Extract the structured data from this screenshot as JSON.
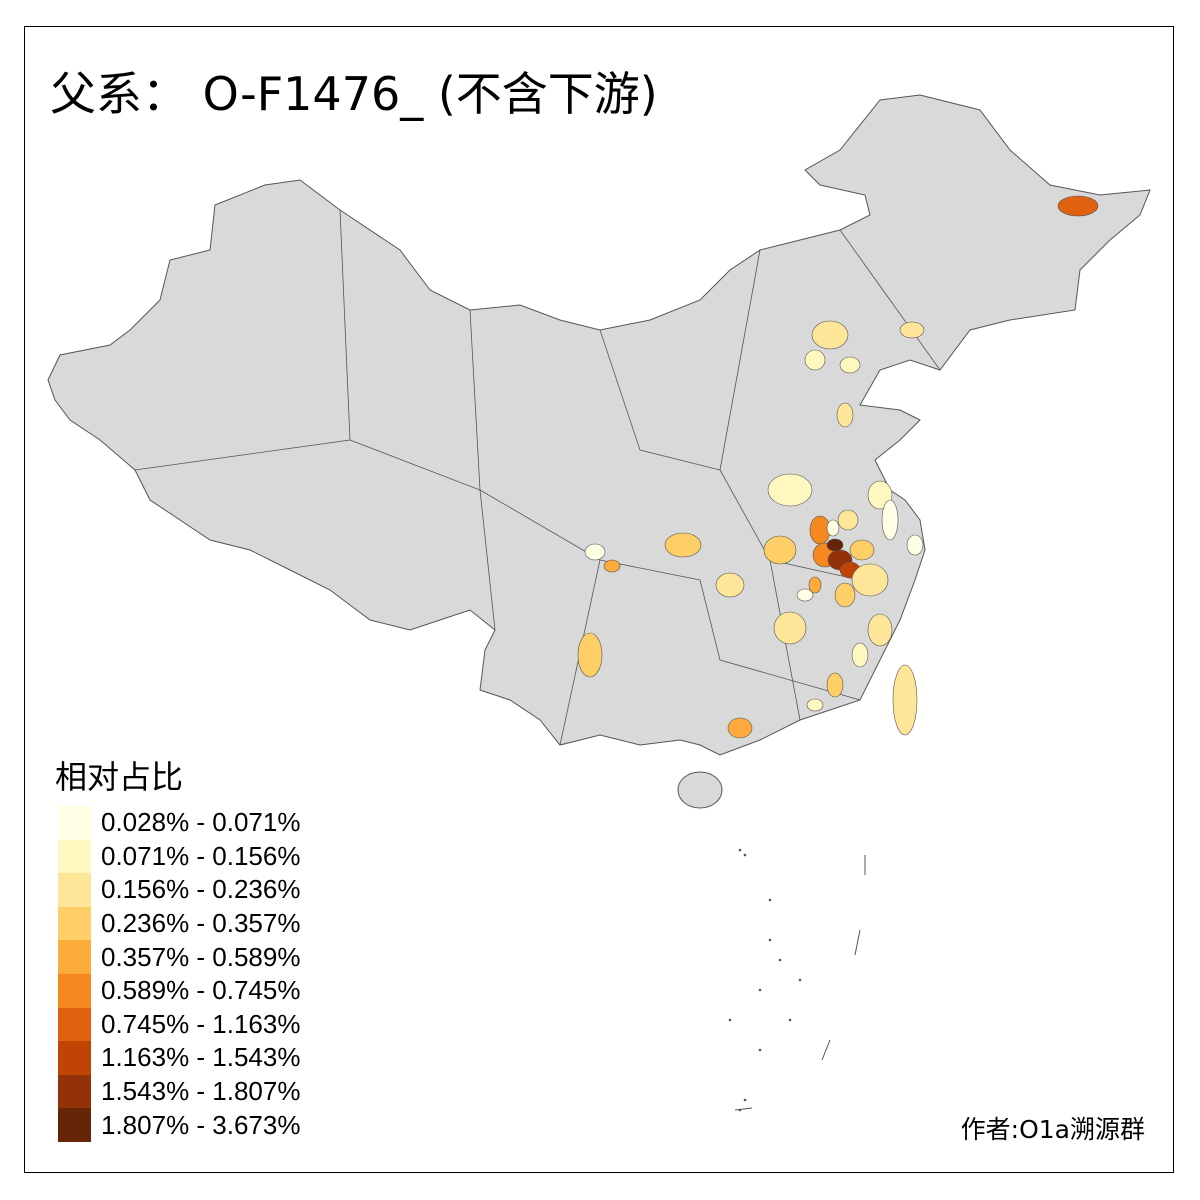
{
  "title": "父系： O-F1476_ (不含下游)",
  "legend": {
    "title": "相对占比",
    "items": [
      {
        "label": "0.028% - 0.071%",
        "color": "#FFFFE5"
      },
      {
        "label": "0.071% - 0.156%",
        "color": "#FFF7C0"
      },
      {
        "label": "0.156% - 0.236%",
        "color": "#FEE698"
      },
      {
        "label": "0.236% - 0.357%",
        "color": "#FECF66"
      },
      {
        "label": "0.357% - 0.589%",
        "color": "#FDAB3C"
      },
      {
        "label": "0.589% - 0.745%",
        "color": "#F5881F"
      },
      {
        "label": "0.745% - 1.163%",
        "color": "#E06210"
      },
      {
        "label": "1.163% - 1.543%",
        "color": "#C04404"
      },
      {
        "label": "1.543% - 1.807%",
        "color": "#933108"
      },
      {
        "label": "1.807% - 3.673%",
        "color": "#662506"
      }
    ]
  },
  "map": {
    "base_color": "#D9D9D9",
    "border_color": "#555555"
  },
  "author": "作者:O1a溯源群"
}
